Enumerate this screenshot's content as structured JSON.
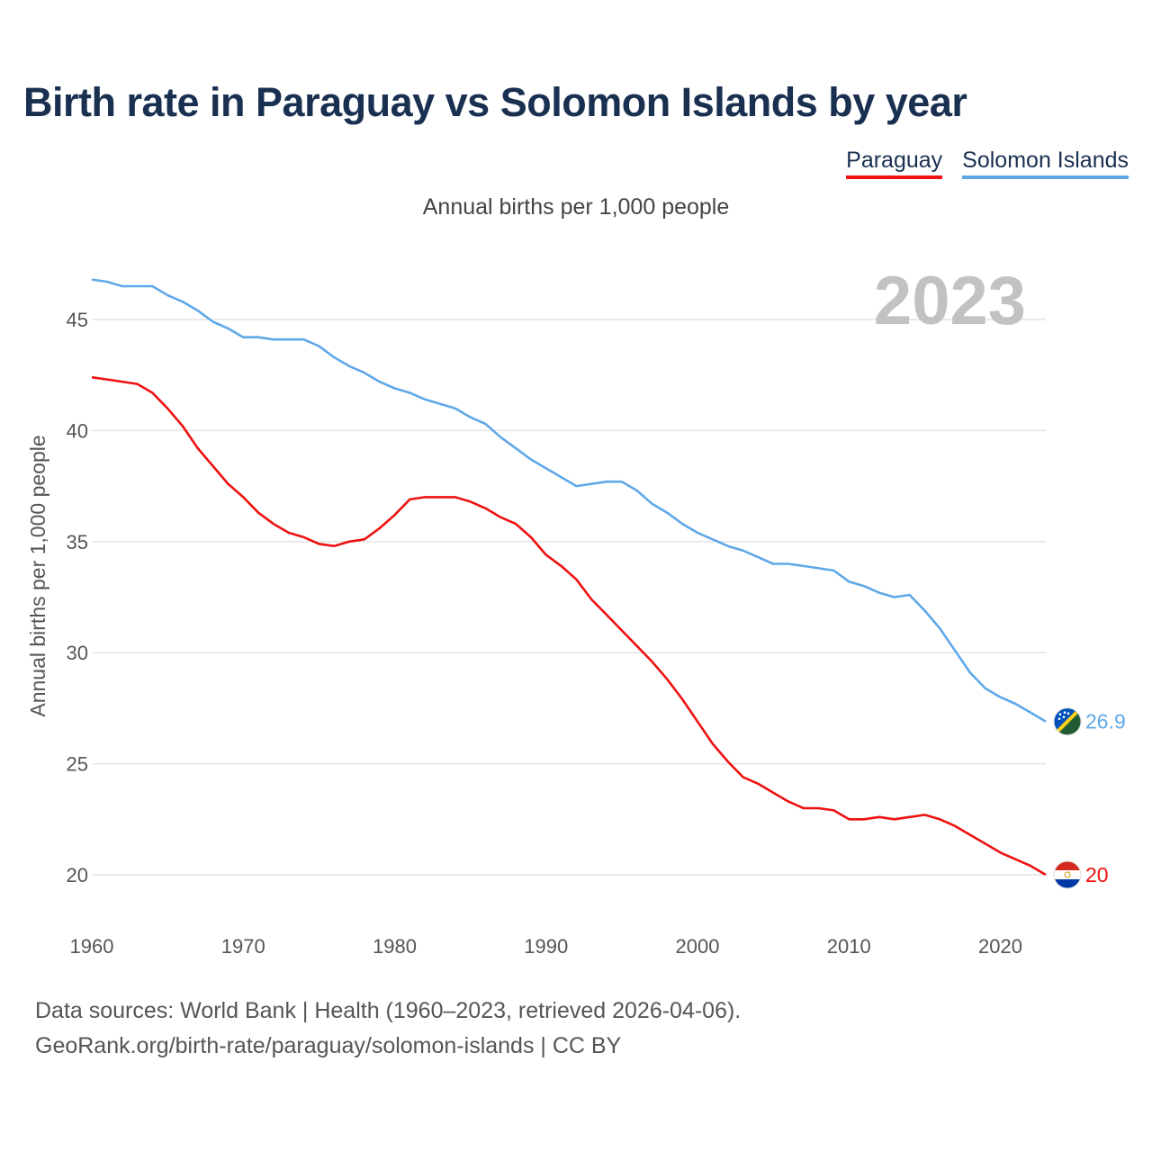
{
  "header": {
    "title": "Birth rate in Paraguay vs Solomon Islands by year",
    "subtitle": "Annual births per 1,000 people"
  },
  "legend": [
    {
      "label": "Paraguay",
      "color": "#ee1111"
    },
    {
      "label": "Solomon Islands",
      "color": "#5fa8e8"
    }
  ],
  "footer": {
    "line1": "Data sources: World Bank | Health (1960–2023, retrieved 2026-04-06).",
    "line2": "GeoRank.org/birth-rate/paraguay/solomon-islands | CC BY"
  },
  "chart_data": {
    "type": "line",
    "title": "Birth rate in Paraguay vs Solomon Islands by year",
    "ylabel": "Annual births per 1,000 people",
    "xlabel": "",
    "year_label": "2023",
    "xlim": [
      1960,
      2023
    ],
    "ylim": [
      18,
      47
    ],
    "x_ticks": [
      1960,
      1970,
      1980,
      1990,
      2000,
      2010,
      2020
    ],
    "y_ticks": [
      20,
      25,
      30,
      35,
      40,
      45
    ],
    "grid": true,
    "x": [
      1960,
      1961,
      1962,
      1963,
      1964,
      1965,
      1966,
      1967,
      1968,
      1969,
      1970,
      1971,
      1972,
      1973,
      1974,
      1975,
      1976,
      1977,
      1978,
      1979,
      1980,
      1981,
      1982,
      1983,
      1984,
      1985,
      1986,
      1987,
      1988,
      1989,
      1990,
      1991,
      1992,
      1993,
      1994,
      1995,
      1996,
      1997,
      1998,
      1999,
      2000,
      2001,
      2002,
      2003,
      2004,
      2005,
      2006,
      2007,
      2008,
      2009,
      2010,
      2011,
      2012,
      2013,
      2014,
      2015,
      2016,
      2017,
      2018,
      2019,
      2020,
      2021,
      2022,
      2023
    ],
    "series": [
      {
        "name": "Paraguay",
        "color": "#ee1111",
        "end_label": "20",
        "flag": "paraguay-flag",
        "values": [
          42.4,
          42.3,
          42.2,
          42.1,
          41.7,
          41.0,
          40.2,
          39.2,
          38.4,
          37.6,
          37.0,
          36.3,
          35.8,
          35.4,
          35.2,
          34.9,
          34.8,
          35.0,
          35.1,
          35.6,
          36.2,
          36.9,
          37.0,
          37.0,
          37.0,
          36.8,
          36.5,
          36.1,
          35.8,
          35.2,
          34.4,
          33.9,
          33.3,
          32.4,
          31.7,
          31.0,
          30.3,
          29.6,
          28.8,
          27.9,
          26.9,
          25.9,
          25.1,
          24.4,
          24.1,
          23.7,
          23.3,
          23.0,
          23.0,
          22.9,
          22.5,
          22.5,
          22.6,
          22.5,
          22.6,
          22.7,
          22.5,
          22.2,
          21.8,
          21.4,
          21.0,
          20.7,
          20.4,
          20.0
        ]
      },
      {
        "name": "Solomon Islands",
        "color": "#5fa8e8",
        "end_label": "26.9",
        "flag": "solomon-islands-flag",
        "values": [
          46.8,
          46.7,
          46.5,
          46.5,
          46.5,
          46.1,
          45.8,
          45.4,
          44.9,
          44.6,
          44.2,
          44.2,
          44.1,
          44.1,
          44.1,
          43.8,
          43.3,
          42.9,
          42.6,
          42.2,
          41.9,
          41.7,
          41.4,
          41.2,
          41.0,
          40.6,
          40.3,
          39.7,
          39.2,
          38.7,
          38.3,
          37.9,
          37.5,
          37.6,
          37.7,
          37.7,
          37.3,
          36.7,
          36.3,
          35.8,
          35.4,
          35.1,
          34.8,
          34.6,
          34.3,
          34.0,
          34.0,
          33.9,
          33.8,
          33.7,
          33.2,
          33.0,
          32.7,
          32.5,
          32.6,
          31.9,
          31.1,
          30.1,
          29.1,
          28.4,
          28.0,
          27.7,
          27.3,
          26.9
        ]
      }
    ]
  }
}
